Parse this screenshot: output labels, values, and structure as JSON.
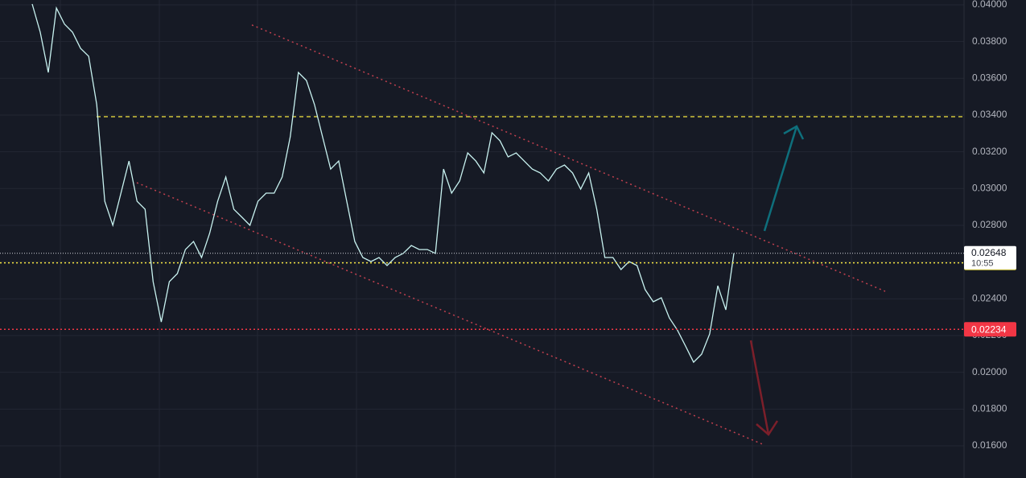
{
  "chart_data": {
    "type": "line",
    "values": [
      0.04004,
      0.03851,
      0.03632,
      0.03982,
      0.03895,
      0.03851,
      0.03763,
      0.0372,
      0.03457,
      0.02931,
      0.028,
      0.02975,
      0.0315,
      0.02931,
      0.02887,
      0.02493,
      0.02274,
      0.02493,
      0.02537,
      0.02668,
      0.02712,
      0.02625,
      0.02756,
      0.02931,
      0.03063,
      0.02887,
      0.02844,
      0.028,
      0.02931,
      0.02975,
      0.02975,
      0.03063,
      0.03282,
      0.03632,
      0.03588,
      0.03457,
      0.03282,
      0.03106,
      0.0315,
      0.02931,
      0.02712,
      0.02625,
      0.02603,
      0.02625,
      0.02581,
      0.02625,
      0.02647,
      0.0269,
      0.02668,
      0.02668,
      0.02647,
      0.03106,
      0.02975,
      0.03041,
      0.03194,
      0.0315,
      0.03085,
      0.03304,
      0.0326,
      0.03172,
      0.03194,
      0.0315,
      0.03106,
      0.03085,
      0.03041,
      0.03106,
      0.03128,
      0.03085,
      0.02997,
      0.03085,
      0.02887,
      0.02625,
      0.02625,
      0.02559,
      0.02603,
      0.02581,
      0.0245,
      0.02384,
      0.02406,
      0.02296,
      0.0223,
      0.02143,
      0.02055,
      0.02099,
      0.02209,
      0.02471,
      0.0234,
      0.02648
    ],
    "color": "#c8f2f0",
    "ylim": [
      0.01425,
      0.04026
    ],
    "yticks": [
      {
        "value": 0.04,
        "label": "0.04000"
      },
      {
        "value": 0.038,
        "label": "0.03800"
      },
      {
        "value": 0.036,
        "label": "0.03600"
      },
      {
        "value": 0.034,
        "label": "0.03400"
      },
      {
        "value": 0.032,
        "label": "0.03200"
      },
      {
        "value": 0.03,
        "label": "0.03000"
      },
      {
        "value": 0.028,
        "label": "0.02800"
      },
      {
        "value": 0.026,
        "label": "0.02600"
      },
      {
        "value": 0.024,
        "label": "0.02400"
      },
      {
        "value": 0.022,
        "label": "0.02200"
      },
      {
        "value": 0.02,
        "label": "0.02000"
      },
      {
        "value": 0.018,
        "label": "0.01800"
      },
      {
        "value": 0.016,
        "label": "0.01600"
      }
    ],
    "grid": true,
    "last_price": 0.02648,
    "countdown": "10:55",
    "levels": [
      {
        "value": 0.02596,
        "color": "#f5e642"
      },
      {
        "value": 0.02234,
        "color": "#f23645"
      }
    ]
  }
}
